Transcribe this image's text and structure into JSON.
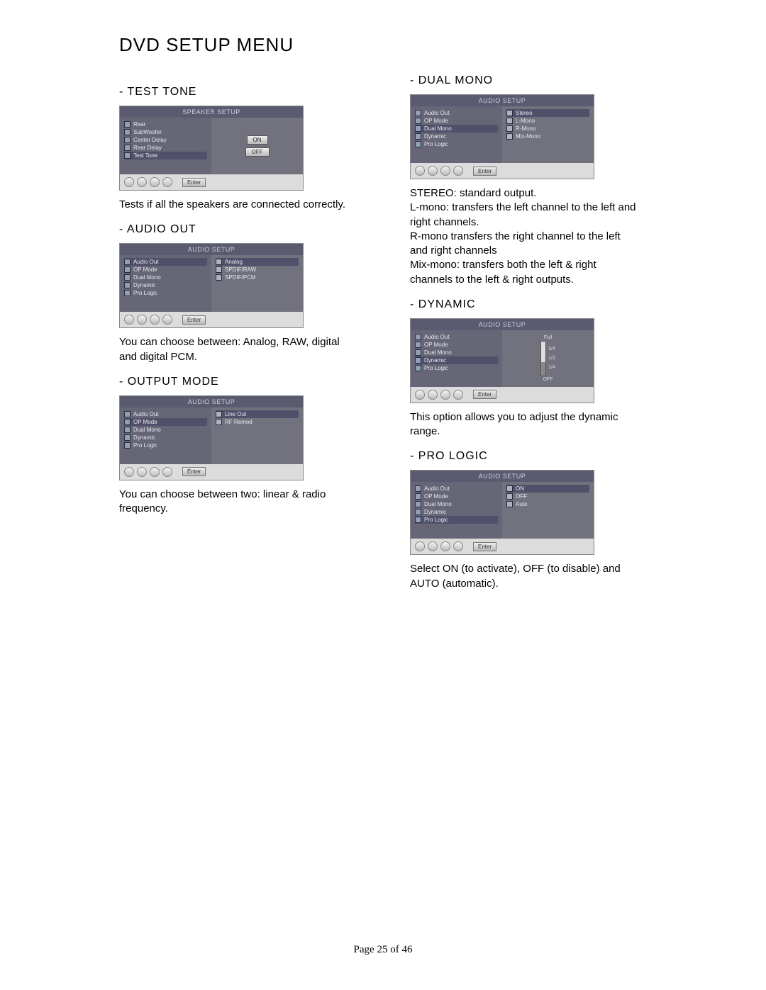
{
  "page_title": "DVD SETUP MENU",
  "footer": "Page 25 of 46",
  "left": {
    "test_tone": {
      "heading": "- TEST TONE",
      "caption": "Tests if all the speakers are connected correctly.",
      "shot": {
        "bar": "SPEAKER SETUP",
        "menu": [
          "Rear",
          "SubWoofer",
          "Center Delay",
          "Rear Delay",
          "Test Tone"
        ],
        "highlight_index": 4,
        "right_buttons": [
          "ON",
          "OFF"
        ],
        "enter": "Enter"
      }
    },
    "audio_out": {
      "heading": "- AUDIO OUT",
      "caption": "You can choose between: Analog, RAW, digital and digital PCM.",
      "shot": {
        "bar": "AUDIO SETUP",
        "menu": [
          "Audio Out",
          "OP Mode",
          "Dual Mono",
          "Dynamic",
          "Pro Logic"
        ],
        "highlight_index": 0,
        "options": [
          "Analog",
          "SPDIF/RAW",
          "SPDIF/PCM"
        ],
        "opt_highlight": 0,
        "enter": "Enter"
      }
    },
    "output_mode": {
      "heading": "- OUTPUT MODE",
      "caption": "You can choose between two: linear & radio frequency.",
      "shot": {
        "bar": "AUDIO SETUP",
        "menu": [
          "Audio Out",
          "OP Mode",
          "Dual Mono",
          "Dynamic",
          "Pro Logic"
        ],
        "highlight_index": 1,
        "options": [
          "Line Out",
          "RF Remod"
        ],
        "opt_highlight": 0,
        "enter": "Enter"
      }
    }
  },
  "right": {
    "dual_mono": {
      "heading": "- DUAL MONO",
      "caption": "STEREO: standard output.\nL-mono: transfers the left channel to the left and right channels.\nR-mono transfers the right channel to the left and right channels\nMix-mono: transfers both the left & right channels to the left & right outputs.",
      "shot": {
        "bar": "AUDIO SETUP",
        "menu": [
          "Audio Out",
          "OP Mode",
          "Dual Mono",
          "Dynamic",
          "Pro Logic"
        ],
        "highlight_index": 2,
        "options": [
          "Stereo",
          "L-Mono",
          "R-Mono",
          "Mix-Mono"
        ],
        "opt_highlight": 0,
        "enter": "Enter"
      }
    },
    "dynamic": {
      "heading": "- DYNAMIC",
      "caption": "This option allows you to adjust the dynamic range.",
      "shot": {
        "bar": "AUDIO SETUP",
        "menu": [
          "Audio Out",
          "OP Mode",
          "Dual Mono",
          "Dynamic",
          "Pro Logic"
        ],
        "highlight_index": 3,
        "scale_top": "Full",
        "scale_labels": [
          "3/4",
          "1/2",
          "1/4"
        ],
        "scale_bot": "OFF",
        "enter": "Enter"
      }
    },
    "pro_logic": {
      "heading": "- PRO LOGIC",
      "caption": "Select ON (to activate), OFF (to disable) and AUTO (automatic).",
      "shot": {
        "bar": "AUDIO SETUP",
        "menu": [
          "Audio Out",
          "OP Mode",
          "Dual Mono",
          "Dynamic",
          "Pro Logic"
        ],
        "highlight_index": 4,
        "options": [
          "ON",
          "OFF",
          "Auto"
        ],
        "opt_highlight": 0,
        "enter": "Enter"
      }
    }
  }
}
